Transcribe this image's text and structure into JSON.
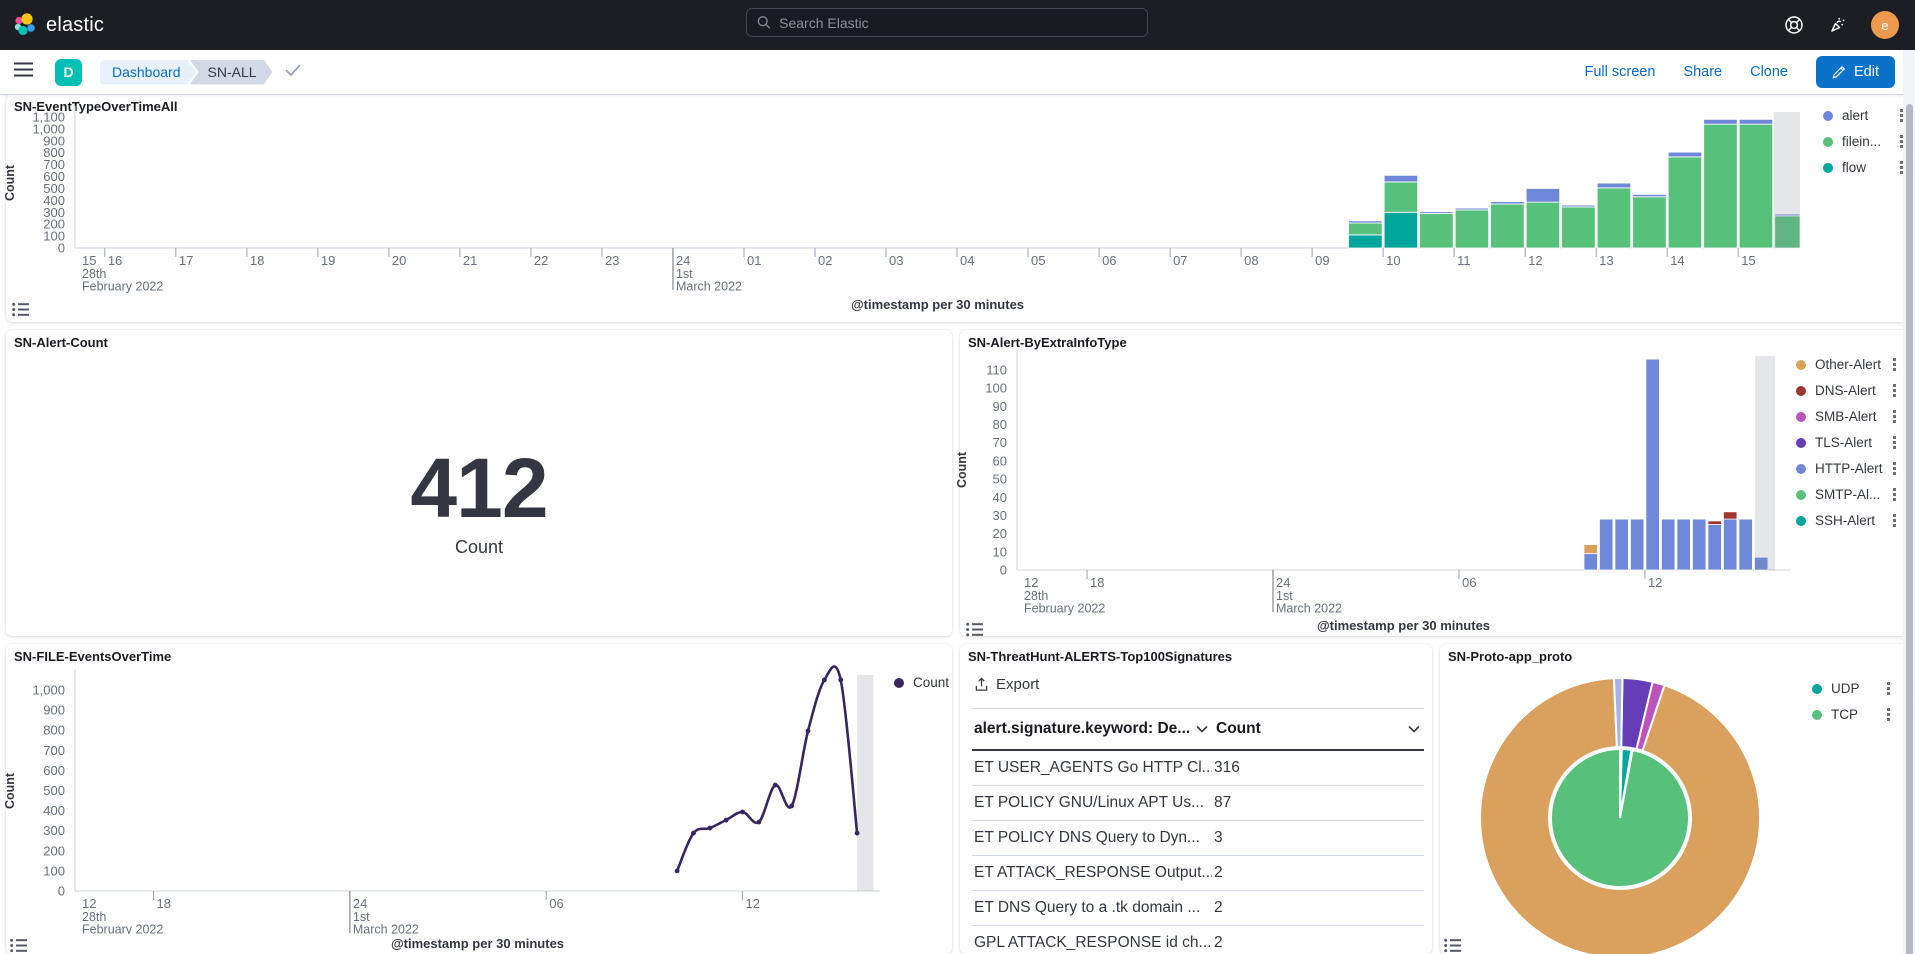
{
  "header": {
    "brand": "elastic",
    "search_placeholder": "Search Elastic",
    "avatar_initial": "e"
  },
  "navbar": {
    "space_initial": "D",
    "breadcrumbs": [
      "Dashboard",
      "SN-ALL"
    ],
    "actions": {
      "full_screen": "Full screen",
      "share": "Share",
      "clone": "Clone",
      "edit": "Edit"
    }
  },
  "colors": {
    "header_bg": "#1d1e24",
    "primary_blue": "#0a6cc3",
    "edit_button": "#0b72c9",
    "space_badge": "#00bfb3",
    "avatar": "#ee9950",
    "text_dark": "#343741",
    "tick_gray": "#69707d",
    "axis_line": "#cdd3de",
    "partial_bucket_band": "rgba(133,142,158,0.22)"
  },
  "chart_data": [
    {
      "id": "sn_event_type",
      "type": "bar",
      "stacked": true,
      "title": "SN-EventTypeOverTimeAll",
      "xlabel": "@timestamp per 30 minutes",
      "ylabel": "Count",
      "ylim": [
        0,
        1100
      ],
      "y_tick_step": 100,
      "x_domain_hours": [
        15.58,
        39.87
      ],
      "x_ticks": [
        {
          "h": 15,
          "label": "15",
          "pinned": true,
          "sub": [
            "28th",
            "February 2022"
          ]
        },
        {
          "h": 16,
          "label": "16"
        },
        {
          "h": 17,
          "label": "17"
        },
        {
          "h": 18,
          "label": "18"
        },
        {
          "h": 19,
          "label": "19"
        },
        {
          "h": 20,
          "label": "20"
        },
        {
          "h": 21,
          "label": "21"
        },
        {
          "h": 22,
          "label": "22"
        },
        {
          "h": 23,
          "label": "23"
        },
        {
          "h": 24,
          "label": "24",
          "major": true,
          "sub": [
            "1st",
            "March 2022"
          ]
        },
        {
          "h": 25,
          "label": "01"
        },
        {
          "h": 26,
          "label": "02"
        },
        {
          "h": 27,
          "label": "03"
        },
        {
          "h": 28,
          "label": "04"
        },
        {
          "h": 29,
          "label": "05"
        },
        {
          "h": 30,
          "label": "06"
        },
        {
          "h": 31,
          "label": "07"
        },
        {
          "h": 32,
          "label": "08"
        },
        {
          "h": 33,
          "label": "09"
        },
        {
          "h": 34,
          "label": "10"
        },
        {
          "h": 35,
          "label": "11"
        },
        {
          "h": 36,
          "label": "12"
        },
        {
          "h": 37,
          "label": "13"
        },
        {
          "h": 38,
          "label": "14"
        },
        {
          "h": 39,
          "label": "15"
        }
      ],
      "series": [
        {
          "name": "alert",
          "color": "#6f87d8"
        },
        {
          "name": "filein...",
          "color": "#57c17b"
        },
        {
          "name": "flow",
          "color": "#00a69b"
        }
      ],
      "bars": [
        {
          "h": 33.5,
          "stacks": [
            [
              2,
              110
            ],
            [
              1,
              100
            ],
            [
              0,
              18
            ]
          ]
        },
        {
          "h": 34.0,
          "stacks": [
            [
              2,
              300
            ],
            [
              1,
              255
            ],
            [
              0,
              55
            ]
          ]
        },
        {
          "h": 34.5,
          "stacks": [
            [
              1,
              290
            ],
            [
              0,
              15
            ]
          ]
        },
        {
          "h": 35.0,
          "stacks": [
            [
              1,
              320
            ],
            [
              0,
              15
            ]
          ]
        },
        {
          "h": 35.5,
          "stacks": [
            [
              1,
              370
            ],
            [
              0,
              20
            ]
          ]
        },
        {
          "h": 36.0,
          "stacks": [
            [
              1,
              385
            ],
            [
              0,
              115
            ]
          ]
        },
        {
          "h": 36.5,
          "stacks": [
            [
              1,
              345
            ],
            [
              0,
              15
            ]
          ]
        },
        {
          "h": 37.0,
          "stacks": [
            [
              1,
              505
            ],
            [
              0,
              40
            ]
          ]
        },
        {
          "h": 37.5,
          "stacks": [
            [
              1,
              430
            ],
            [
              0,
              20
            ]
          ]
        },
        {
          "h": 38.0,
          "stacks": [
            [
              1,
              765
            ],
            [
              0,
              40
            ]
          ]
        },
        {
          "h": 38.5,
          "stacks": [
            [
              1,
              1040
            ],
            [
              0,
              40
            ]
          ]
        },
        {
          "h": 39.0,
          "stacks": [
            [
              1,
              1040
            ],
            [
              0,
              40
            ]
          ]
        },
        {
          "h": 39.5,
          "stacks": [
            [
              1,
              270
            ],
            [
              0,
              15
            ]
          ]
        }
      ],
      "partial_bucket_hours": [
        39.5,
        39.87
      ],
      "legend_position": "right"
    },
    {
      "id": "sn_alert_count",
      "type": "metric",
      "title": "SN-Alert-Count",
      "value": "412",
      "label": "Count"
    },
    {
      "id": "sn_alert_by_extra_info",
      "type": "bar",
      "stacked": true,
      "title": "SN-Alert-ByExtraInfoType",
      "xlabel": "@timestamp per 30 minutes",
      "ylabel": "Count",
      "ylim": [
        0,
        110
      ],
      "y_tick_step": 10,
      "x_domain_hours": [
        15.74,
        40.68
      ],
      "x_ticks": [
        {
          "h": 12,
          "label": "12",
          "pinned": true,
          "sub": [
            "28th",
            "February 2022"
          ]
        },
        {
          "h": 18,
          "label": "18"
        },
        {
          "h": 24,
          "label": "24",
          "major": true,
          "sub": [
            "1st",
            "March 2022"
          ]
        },
        {
          "h": 30,
          "label": "06"
        },
        {
          "h": 36,
          "label": "12"
        }
      ],
      "series": [
        {
          "name": "Other-Alert",
          "color": "#daa05d"
        },
        {
          "name": "DNS-Alert",
          "color": "#9e3533"
        },
        {
          "name": "SMB-Alert",
          "color": "#bc52bc"
        },
        {
          "name": "TLS-Alert",
          "color": "#663db8"
        },
        {
          "name": "HTTP-Alert",
          "color": "#6f87d8"
        },
        {
          "name": "SMTP-Al...",
          "color": "#57c17b"
        },
        {
          "name": "SSH-Alert",
          "color": "#00a69b"
        }
      ],
      "bars": [
        {
          "h": 34.0,
          "stacks": [
            [
              4,
              9
            ],
            [
              0,
              5
            ]
          ]
        },
        {
          "h": 34.5,
          "stacks": [
            [
              4,
              28
            ]
          ]
        },
        {
          "h": 35.0,
          "stacks": [
            [
              4,
              28
            ]
          ]
        },
        {
          "h": 35.5,
          "stacks": [
            [
              4,
              28
            ]
          ]
        },
        {
          "h": 36.0,
          "stacks": [
            [
              4,
              116
            ]
          ]
        },
        {
          "h": 36.5,
          "stacks": [
            [
              4,
              28
            ]
          ]
        },
        {
          "h": 37.0,
          "stacks": [
            [
              4,
              28
            ]
          ]
        },
        {
          "h": 37.5,
          "stacks": [
            [
              4,
              28
            ]
          ]
        },
        {
          "h": 38.0,
          "stacks": [
            [
              4,
              25
            ],
            [
              1,
              2
            ]
          ]
        },
        {
          "h": 38.5,
          "stacks": [
            [
              4,
              28
            ],
            [
              1,
              4
            ]
          ]
        },
        {
          "h": 39.0,
          "stacks": [
            [
              4,
              28
            ]
          ]
        },
        {
          "h": 39.5,
          "stacks": [
            [
              4,
              7
            ]
          ]
        }
      ],
      "partial_bucket_hours": [
        39.55,
        40.2
      ],
      "legend_position": "right"
    },
    {
      "id": "sn_file_events",
      "type": "line",
      "title": "SN-FILE-EventsOverTime",
      "xlabel": "@timestamp per 30 minutes",
      "ylabel": "Count",
      "ylim": [
        0,
        1000
      ],
      "y_tick_step": 100,
      "x_domain_hours": [
        15.6,
        40.2
      ],
      "x_ticks": [
        {
          "h": 12,
          "label": "12",
          "pinned": true,
          "sub": [
            "28th",
            "February 2022"
          ]
        },
        {
          "h": 18,
          "label": "18"
        },
        {
          "h": 24,
          "label": "24",
          "major": true,
          "sub": [
            "1st",
            "March 2022"
          ]
        },
        {
          "h": 30,
          "label": "06"
        },
        {
          "h": 36,
          "label": "12"
        }
      ],
      "series": [
        {
          "name": "Count",
          "color": "#38265f"
        }
      ],
      "points": [
        {
          "h": 34.0,
          "v": 100
        },
        {
          "h": 34.5,
          "v": 288
        },
        {
          "h": 35.0,
          "v": 313
        },
        {
          "h": 35.5,
          "v": 353
        },
        {
          "h": 36.0,
          "v": 393
        },
        {
          "h": 36.5,
          "v": 343
        },
        {
          "h": 37.0,
          "v": 527
        },
        {
          "h": 37.5,
          "v": 423
        },
        {
          "h": 38.0,
          "v": 796
        },
        {
          "h": 38.5,
          "v": 1050
        },
        {
          "h": 39.0,
          "v": 1050
        },
        {
          "h": 39.5,
          "v": 288
        }
      ],
      "partial_bucket_hours": [
        39.5,
        40.0
      ],
      "legend_position": "right"
    },
    {
      "id": "sn_threathunt_signatures",
      "type": "table",
      "title": "SN-ThreatHunt-ALERTS-Top100Signatures",
      "export_label": "Export",
      "columns": [
        "alert.signature.keyword: De...",
        "Count"
      ],
      "rows": [
        [
          "ET USER_AGENTS Go HTTP Cl...",
          "316"
        ],
        [
          "ET POLICY GNU/Linux APT Us...",
          "87"
        ],
        [
          "ET POLICY DNS Query to Dyn...",
          "3"
        ],
        [
          "ET ATTACK_RESPONSE Output...",
          "2"
        ],
        [
          "ET DNS Query to a .tk domain ...",
          "2"
        ],
        [
          "GPL ATTACK_RESPONSE id ch...",
          "2"
        ]
      ]
    },
    {
      "id": "sn_proto_app_proto",
      "type": "pie",
      "title": "SN-Proto-app_proto",
      "legend": [
        {
          "name": "UDP",
          "color": "#00a69b"
        },
        {
          "name": "TCP",
          "color": "#57c17b"
        }
      ],
      "rings": [
        {
          "level": "inner",
          "slices": [
            {
              "name": "TCP",
              "color": "#57c17b",
              "start_deg": 10.5,
              "end_deg": 360,
              "value_pct": 97.3
            },
            {
              "name": "UDP",
              "color": "#00a69b",
              "start_deg": 1.5,
              "end_deg": 9.5,
              "value_pct": 2.2
            }
          ]
        },
        {
          "level": "outer",
          "slices": [
            {
              "name": "other",
              "color": "#daa05d",
              "start_deg": 18.5,
              "end_deg": 357.5,
              "value_pct": 94.2
            },
            {
              "name": "slice-purple",
              "color": "#663db8",
              "start_deg": 1,
              "end_deg": 13.5,
              "value_pct": 3.5
            },
            {
              "name": "slice-magenta",
              "color": "#bc52bc",
              "start_deg": 13.5,
              "end_deg": 18.5,
              "value_pct": 1.4
            },
            {
              "name": "slice-lightblue",
              "color": "#a4b4ea",
              "start_deg": -2.5,
              "end_deg": 1,
              "value_pct": 0.9
            }
          ]
        }
      ]
    }
  ]
}
